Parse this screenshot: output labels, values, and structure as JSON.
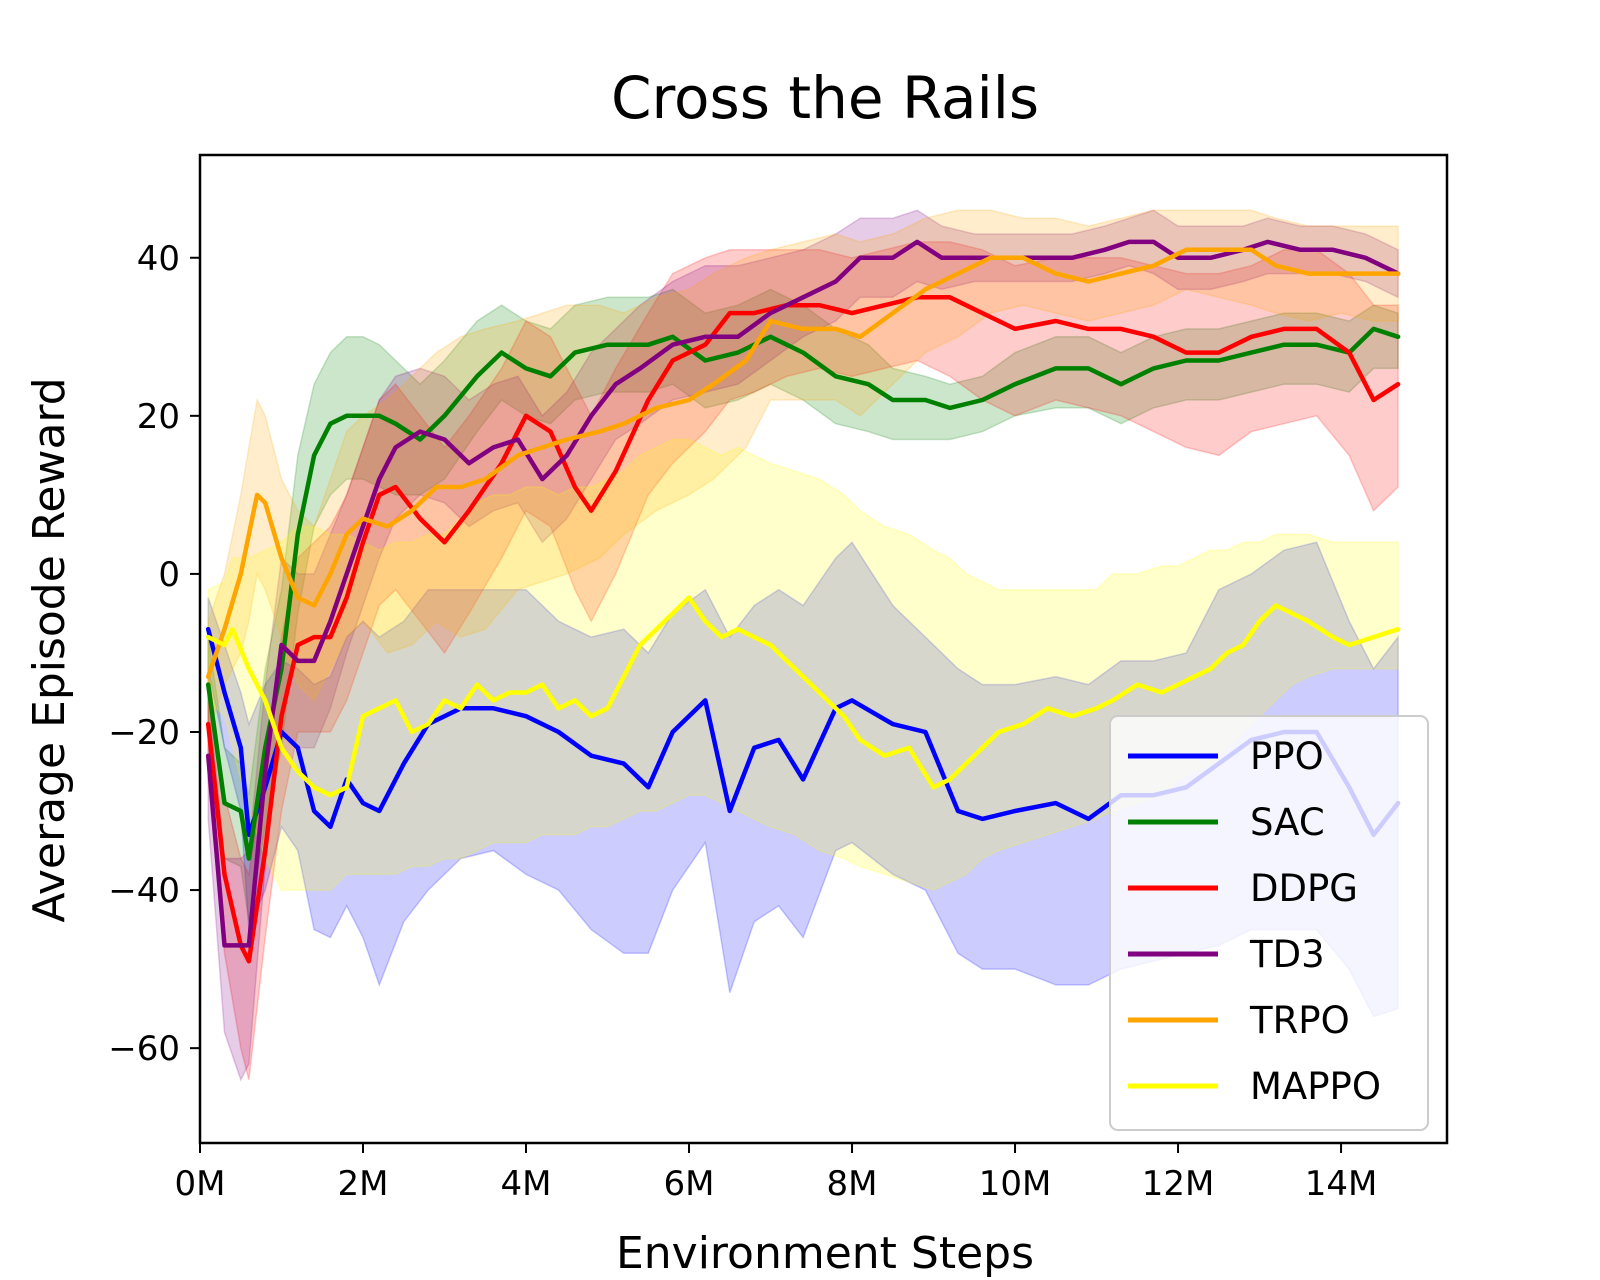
{
  "chart_data": {
    "type": "line",
    "title": "Cross the Rails",
    "xlabel": "Environment Steps",
    "ylabel": "Average Episode Reward",
    "xlim": [
      0,
      15.3
    ],
    "ylim": [
      -72,
      53
    ],
    "x_unit": "M",
    "xticks": [
      0,
      2,
      4,
      6,
      8,
      10,
      12,
      14
    ],
    "xtick_labels": [
      "0M",
      "2M",
      "4M",
      "6M",
      "8M",
      "10M",
      "12M",
      "14M"
    ],
    "yticks": [
      -60,
      -40,
      -20,
      0,
      20,
      40
    ],
    "ytick_labels": [
      "−60",
      "−40",
      "−20",
      "0",
      "20",
      "40"
    ],
    "grid": false,
    "legend_position": "lower-right",
    "series": [
      {
        "name": "PPO",
        "color": "#0000ff",
        "x": [
          0.1,
          0.3,
          0.5,
          0.6,
          0.8,
          1.0,
          1.2,
          1.4,
          1.6,
          1.8,
          2.0,
          2.2,
          2.5,
          2.8,
          3.2,
          3.6,
          4.0,
          4.4,
          4.8,
          5.2,
          5.5,
          5.8,
          6.2,
          6.5,
          6.8,
          7.1,
          7.4,
          7.8,
          8.0,
          8.5,
          8.9,
          9.3,
          9.6,
          10.0,
          10.5,
          10.9,
          11.3,
          11.7,
          12.1,
          12.5,
          12.9,
          13.3,
          13.7,
          14.1,
          14.4,
          14.7
        ],
        "y": [
          -7,
          -15,
          -22,
          -33,
          -27,
          -20,
          -22,
          -30,
          -32,
          -26,
          -29,
          -30,
          -24,
          -19,
          -17,
          -17,
          -18,
          -20,
          -23,
          -24,
          -27,
          -20,
          -16,
          -30,
          -22,
          -21,
          -26,
          -17,
          -16,
          -19,
          -20,
          -30,
          -31,
          -30,
          -29,
          -31,
          -28,
          -28,
          -27,
          -24,
          -21,
          -20,
          -20,
          -27,
          -33,
          -29
        ],
        "upper": [
          -3,
          -9,
          -15,
          -19,
          -14,
          -11,
          -12,
          -14,
          -13,
          -8,
          -6,
          -8,
          -6,
          -2,
          -2,
          -2,
          -2,
          -6,
          -8,
          -7,
          -10,
          -5,
          -2,
          -8,
          -4,
          -2,
          -4,
          2,
          4,
          -4,
          -8,
          -12,
          -14,
          -14,
          -13,
          -14,
          -11,
          -11,
          -10,
          -2,
          0,
          3,
          4,
          -6,
          -12,
          -8
        ],
        "lower": [
          -12,
          -22,
          -30,
          -45,
          -40,
          -32,
          -35,
          -45,
          -46,
          -42,
          -46,
          -52,
          -44,
          -40,
          -36,
          -35,
          -38,
          -40,
          -45,
          -48,
          -48,
          -40,
          -34,
          -53,
          -44,
          -42,
          -46,
          -35,
          -34,
          -38,
          -40,
          -48,
          -50,
          -50,
          -52,
          -52,
          -50,
          -49,
          -48,
          -47,
          -45,
          -45,
          -45,
          -50,
          -56,
          -55
        ]
      },
      {
        "name": "SAC",
        "color": "#008000",
        "x": [
          0.1,
          0.3,
          0.5,
          0.6,
          0.8,
          1.0,
          1.2,
          1.4,
          1.6,
          1.8,
          2.0,
          2.2,
          2.4,
          2.7,
          3.0,
          3.4,
          3.7,
          4.0,
          4.3,
          4.6,
          5.0,
          5.5,
          5.8,
          6.2,
          6.6,
          7.0,
          7.4,
          7.8,
          8.2,
          8.5,
          8.9,
          9.2,
          9.6,
          10.0,
          10.5,
          10.9,
          11.3,
          11.7,
          12.1,
          12.5,
          12.9,
          13.3,
          13.7,
          14.1,
          14.4,
          14.7
        ],
        "y": [
          -14,
          -29,
          -30,
          -36,
          -22,
          -12,
          5,
          15,
          19,
          20,
          20,
          20,
          19,
          17,
          20,
          25,
          28,
          26,
          25,
          28,
          29,
          29,
          30,
          27,
          28,
          30,
          28,
          25,
          24,
          22,
          22,
          21,
          22,
          24,
          26,
          26,
          24,
          26,
          27,
          27,
          28,
          29,
          29,
          28,
          31,
          30
        ],
        "upper": [
          -8,
          -22,
          -24,
          -28,
          -12,
          -2,
          15,
          24,
          28,
          30,
          30,
          29,
          27,
          24,
          27,
          32,
          34,
          32,
          31,
          34,
          35,
          35,
          36,
          33,
          34,
          36,
          34,
          31,
          29,
          26,
          25,
          24,
          25,
          28,
          30,
          30,
          28,
          30,
          31,
          31,
          32,
          33,
          33,
          32,
          34,
          33
        ],
        "lower": [
          -20,
          -36,
          -37,
          -44,
          -32,
          -22,
          -5,
          6,
          10,
          12,
          12,
          11,
          10,
          10,
          12,
          18,
          22,
          20,
          19,
          22,
          23,
          23,
          24,
          21,
          22,
          24,
          22,
          19,
          18,
          17,
          17,
          17,
          18,
          20,
          21,
          21,
          19,
          21,
          22,
          22,
          23,
          24,
          24,
          23,
          26,
          26
        ]
      },
      {
        "name": "DDPG",
        "color": "#ff0000",
        "x": [
          0.1,
          0.3,
          0.5,
          0.6,
          0.8,
          1.0,
          1.2,
          1.4,
          1.6,
          1.8,
          2.0,
          2.2,
          2.4,
          2.7,
          3.0,
          3.3,
          3.7,
          4.0,
          4.3,
          4.6,
          4.8,
          5.1,
          5.5,
          5.8,
          6.2,
          6.5,
          6.8,
          7.2,
          7.6,
          8.0,
          8.4,
          8.8,
          9.2,
          9.6,
          10.0,
          10.5,
          10.9,
          11.3,
          11.7,
          12.1,
          12.5,
          12.9,
          13.3,
          13.7,
          14.1,
          14.4,
          14.7
        ],
        "y": [
          -19,
          -38,
          -47,
          -49,
          -35,
          -18,
          -9,
          -8,
          -8,
          -3,
          4,
          10,
          11,
          7,
          4,
          8,
          14,
          20,
          18,
          11,
          8,
          13,
          22,
          27,
          29,
          33,
          33,
          34,
          34,
          33,
          34,
          35,
          35,
          33,
          31,
          32,
          31,
          31,
          30,
          28,
          28,
          30,
          31,
          31,
          28,
          22,
          24
        ],
        "upper": [
          -12,
          -28,
          -36,
          -38,
          -24,
          -8,
          2,
          4,
          6,
          10,
          16,
          22,
          24,
          20,
          16,
          20,
          26,
          32,
          30,
          24,
          20,
          26,
          33,
          38,
          40,
          41,
          41,
          41,
          41,
          40,
          41,
          42,
          42,
          41,
          39,
          40,
          40,
          40,
          39,
          38,
          38,
          39,
          41,
          41,
          38,
          34,
          34
        ],
        "lower": [
          -26,
          -48,
          -60,
          -64,
          -46,
          -30,
          -20,
          -20,
          -20,
          -16,
          -10,
          -4,
          -2,
          -6,
          -10,
          -5,
          2,
          8,
          6,
          -2,
          -6,
          0,
          10,
          14,
          18,
          22,
          23,
          25,
          26,
          25,
          26,
          27,
          25,
          22,
          20,
          22,
          21,
          20,
          18,
          16,
          15,
          18,
          19,
          20,
          15,
          8,
          11
        ]
      },
      {
        "name": "TD3",
        "color": "#800080",
        "x": [
          0.1,
          0.3,
          0.5,
          0.6,
          0.8,
          1.0,
          1.2,
          1.4,
          1.6,
          1.8,
          2.0,
          2.2,
          2.4,
          2.7,
          3.0,
          3.3,
          3.6,
          3.9,
          4.2,
          4.5,
          4.8,
          5.1,
          5.4,
          5.8,
          6.2,
          6.6,
          7.0,
          7.4,
          7.8,
          8.1,
          8.5,
          8.8,
          9.1,
          9.5,
          9.9,
          10.3,
          10.7,
          11.1,
          11.4,
          11.7,
          12.0,
          12.4,
          12.8,
          13.1,
          13.5,
          13.9,
          14.3,
          14.7
        ],
        "y": [
          -23,
          -47,
          -47,
          -47,
          -25,
          -9,
          -11,
          -11,
          -6,
          0,
          6,
          12,
          16,
          18,
          17,
          14,
          16,
          17,
          12,
          15,
          20,
          24,
          26,
          29,
          30,
          30,
          33,
          35,
          37,
          40,
          40,
          42,
          40,
          40,
          40,
          40,
          40,
          41,
          42,
          42,
          40,
          40,
          41,
          42,
          41,
          41,
          40,
          38
        ],
        "upper": [
          -15,
          -36,
          -36,
          -35,
          -14,
          2,
          0,
          0,
          5,
          10,
          16,
          22,
          25,
          26,
          25,
          22,
          24,
          25,
          20,
          23,
          28,
          31,
          34,
          37,
          39,
          39,
          40,
          41,
          43,
          45,
          45,
          46,
          44,
          43,
          43,
          43,
          43,
          44,
          45,
          46,
          44,
          44,
          44,
          45,
          44,
          44,
          43,
          41
        ],
        "lower": [
          -31,
          -58,
          -64,
          -62,
          -37,
          -20,
          -22,
          -22,
          -17,
          -10,
          -4,
          2,
          7,
          10,
          9,
          6,
          8,
          9,
          4,
          7,
          12,
          17,
          19,
          22,
          23,
          24,
          27,
          30,
          32,
          35,
          35,
          37,
          36,
          37,
          37,
          37,
          37,
          38,
          39,
          38,
          36,
          36,
          37,
          38,
          38,
          38,
          37,
          35
        ]
      },
      {
        "name": "TRPO",
        "color": "#ffa500",
        "x": [
          0.1,
          0.3,
          0.5,
          0.6,
          0.7,
          0.8,
          1.0,
          1.2,
          1.4,
          1.6,
          1.8,
          2.0,
          2.3,
          2.6,
          2.9,
          3.2,
          3.5,
          3.9,
          4.2,
          4.5,
          4.9,
          5.2,
          5.6,
          6.0,
          6.3,
          6.7,
          7.0,
          7.4,
          7.8,
          8.1,
          8.5,
          8.9,
          9.3,
          9.7,
          10.1,
          10.5,
          10.9,
          11.3,
          11.7,
          12.1,
          12.5,
          12.9,
          13.2,
          13.6,
          14.0,
          14.4,
          14.7
        ],
        "y": [
          -13,
          -7,
          0,
          5,
          10,
          9,
          2,
          -3,
          -4,
          0,
          5,
          7,
          6,
          8,
          11,
          11,
          12,
          15,
          16,
          17,
          18,
          19,
          21,
          22,
          24,
          27,
          32,
          31,
          31,
          30,
          33,
          36,
          38,
          40,
          40,
          38,
          37,
          38,
          39,
          41,
          41,
          41,
          39,
          38,
          38,
          38,
          38
        ],
        "upper": [
          -6,
          0,
          10,
          16,
          22,
          20,
          12,
          8,
          6,
          12,
          18,
          20,
          22,
          25,
          28,
          30,
          31,
          32,
          33,
          34,
          34,
          33,
          35,
          36,
          38,
          40,
          41,
          42,
          43,
          42,
          43,
          45,
          46,
          46,
          45,
          45,
          44,
          45,
          46,
          46,
          46,
          46,
          45,
          44,
          44,
          44,
          44
        ],
        "lower": [
          -20,
          -14,
          -10,
          -6,
          0,
          -2,
          -8,
          -14,
          -16,
          -12,
          -8,
          -6,
          -10,
          -9,
          -6,
          -8,
          -7,
          -2,
          -1,
          0,
          2,
          5,
          8,
          10,
          12,
          16,
          22,
          22,
          22,
          20,
          24,
          28,
          30,
          33,
          34,
          33,
          32,
          33,
          34,
          36,
          35,
          34,
          33,
          32,
          33,
          32,
          32
        ]
      },
      {
        "name": "MAPPO",
        "color": "#ffff00",
        "x": [
          0.1,
          0.3,
          0.4,
          0.6,
          0.8,
          1.0,
          1.2,
          1.4,
          1.6,
          1.8,
          2.0,
          2.2,
          2.4,
          2.6,
          2.8,
          3.0,
          3.2,
          3.4,
          3.6,
          3.8,
          4.0,
          4.2,
          4.4,
          4.6,
          4.8,
          5.0,
          5.2,
          5.4,
          5.6,
          5.8,
          6.0,
          6.2,
          6.4,
          6.6,
          6.8,
          7.0,
          7.3,
          7.6,
          7.9,
          8.1,
          8.4,
          8.7,
          9.0,
          9.2,
          9.4,
          9.6,
          9.8,
          10.1,
          10.4,
          10.7,
          11.0,
          11.2,
          11.5,
          11.8,
          12.0,
          12.2,
          12.4,
          12.6,
          12.8,
          13.0,
          13.2,
          13.4,
          13.6,
          13.9,
          14.1,
          14.4,
          14.7
        ],
        "y": [
          -8,
          -9,
          -7,
          -12,
          -16,
          -22,
          -25,
          -27,
          -28,
          -27,
          -18,
          -17,
          -16,
          -20,
          -19,
          -16,
          -17,
          -14,
          -16,
          -15,
          -15,
          -14,
          -17,
          -16,
          -18,
          -17,
          -13,
          -9,
          -7,
          -5,
          -3,
          -6,
          -8,
          -7,
          -8,
          -9,
          -12,
          -15,
          -18,
          -21,
          -23,
          -22,
          -27,
          -26,
          -24,
          -22,
          -20,
          -19,
          -17,
          -18,
          -17,
          -16,
          -14,
          -15,
          -14,
          -13,
          -12,
          -10,
          -9,
          -6,
          -4,
          -5,
          -6,
          -8,
          -9,
          -8,
          -7
        ],
        "upper": [
          -2,
          -1,
          2,
          2,
          3,
          4,
          6,
          6,
          5,
          5,
          4,
          3,
          4,
          4,
          5,
          5,
          7,
          9,
          10,
          10,
          11,
          11,
          10,
          11,
          11,
          12,
          13,
          15,
          16,
          17,
          17,
          16,
          15,
          16,
          15,
          14,
          13,
          12,
          10,
          8,
          6,
          5,
          3,
          2,
          0,
          -1,
          -2,
          -2,
          -2,
          -2,
          -2,
          0,
          0,
          1,
          1,
          2,
          3,
          3,
          4,
          4,
          5,
          5,
          5,
          4,
          4,
          4,
          4
        ],
        "lower": [
          -16,
          -18,
          -22,
          -30,
          -36,
          -40,
          -40,
          -40,
          -40,
          -38,
          -38,
          -38,
          -38,
          -37,
          -37,
          -36,
          -36,
          -35,
          -34,
          -34,
          -34,
          -33,
          -33,
          -33,
          -32,
          -32,
          -31,
          -30,
          -30,
          -29,
          -28,
          -28,
          -29,
          -30,
          -31,
          -32,
          -33,
          -35,
          -36,
          -37,
          -38,
          -39,
          -40,
          -39,
          -38,
          -36,
          -35,
          -34,
          -33,
          -32,
          -31,
          -30,
          -29,
          -28,
          -26,
          -25,
          -24,
          -22,
          -20,
          -18,
          -16,
          -14,
          -13,
          -12,
          -12,
          -12,
          -12
        ]
      }
    ]
  }
}
